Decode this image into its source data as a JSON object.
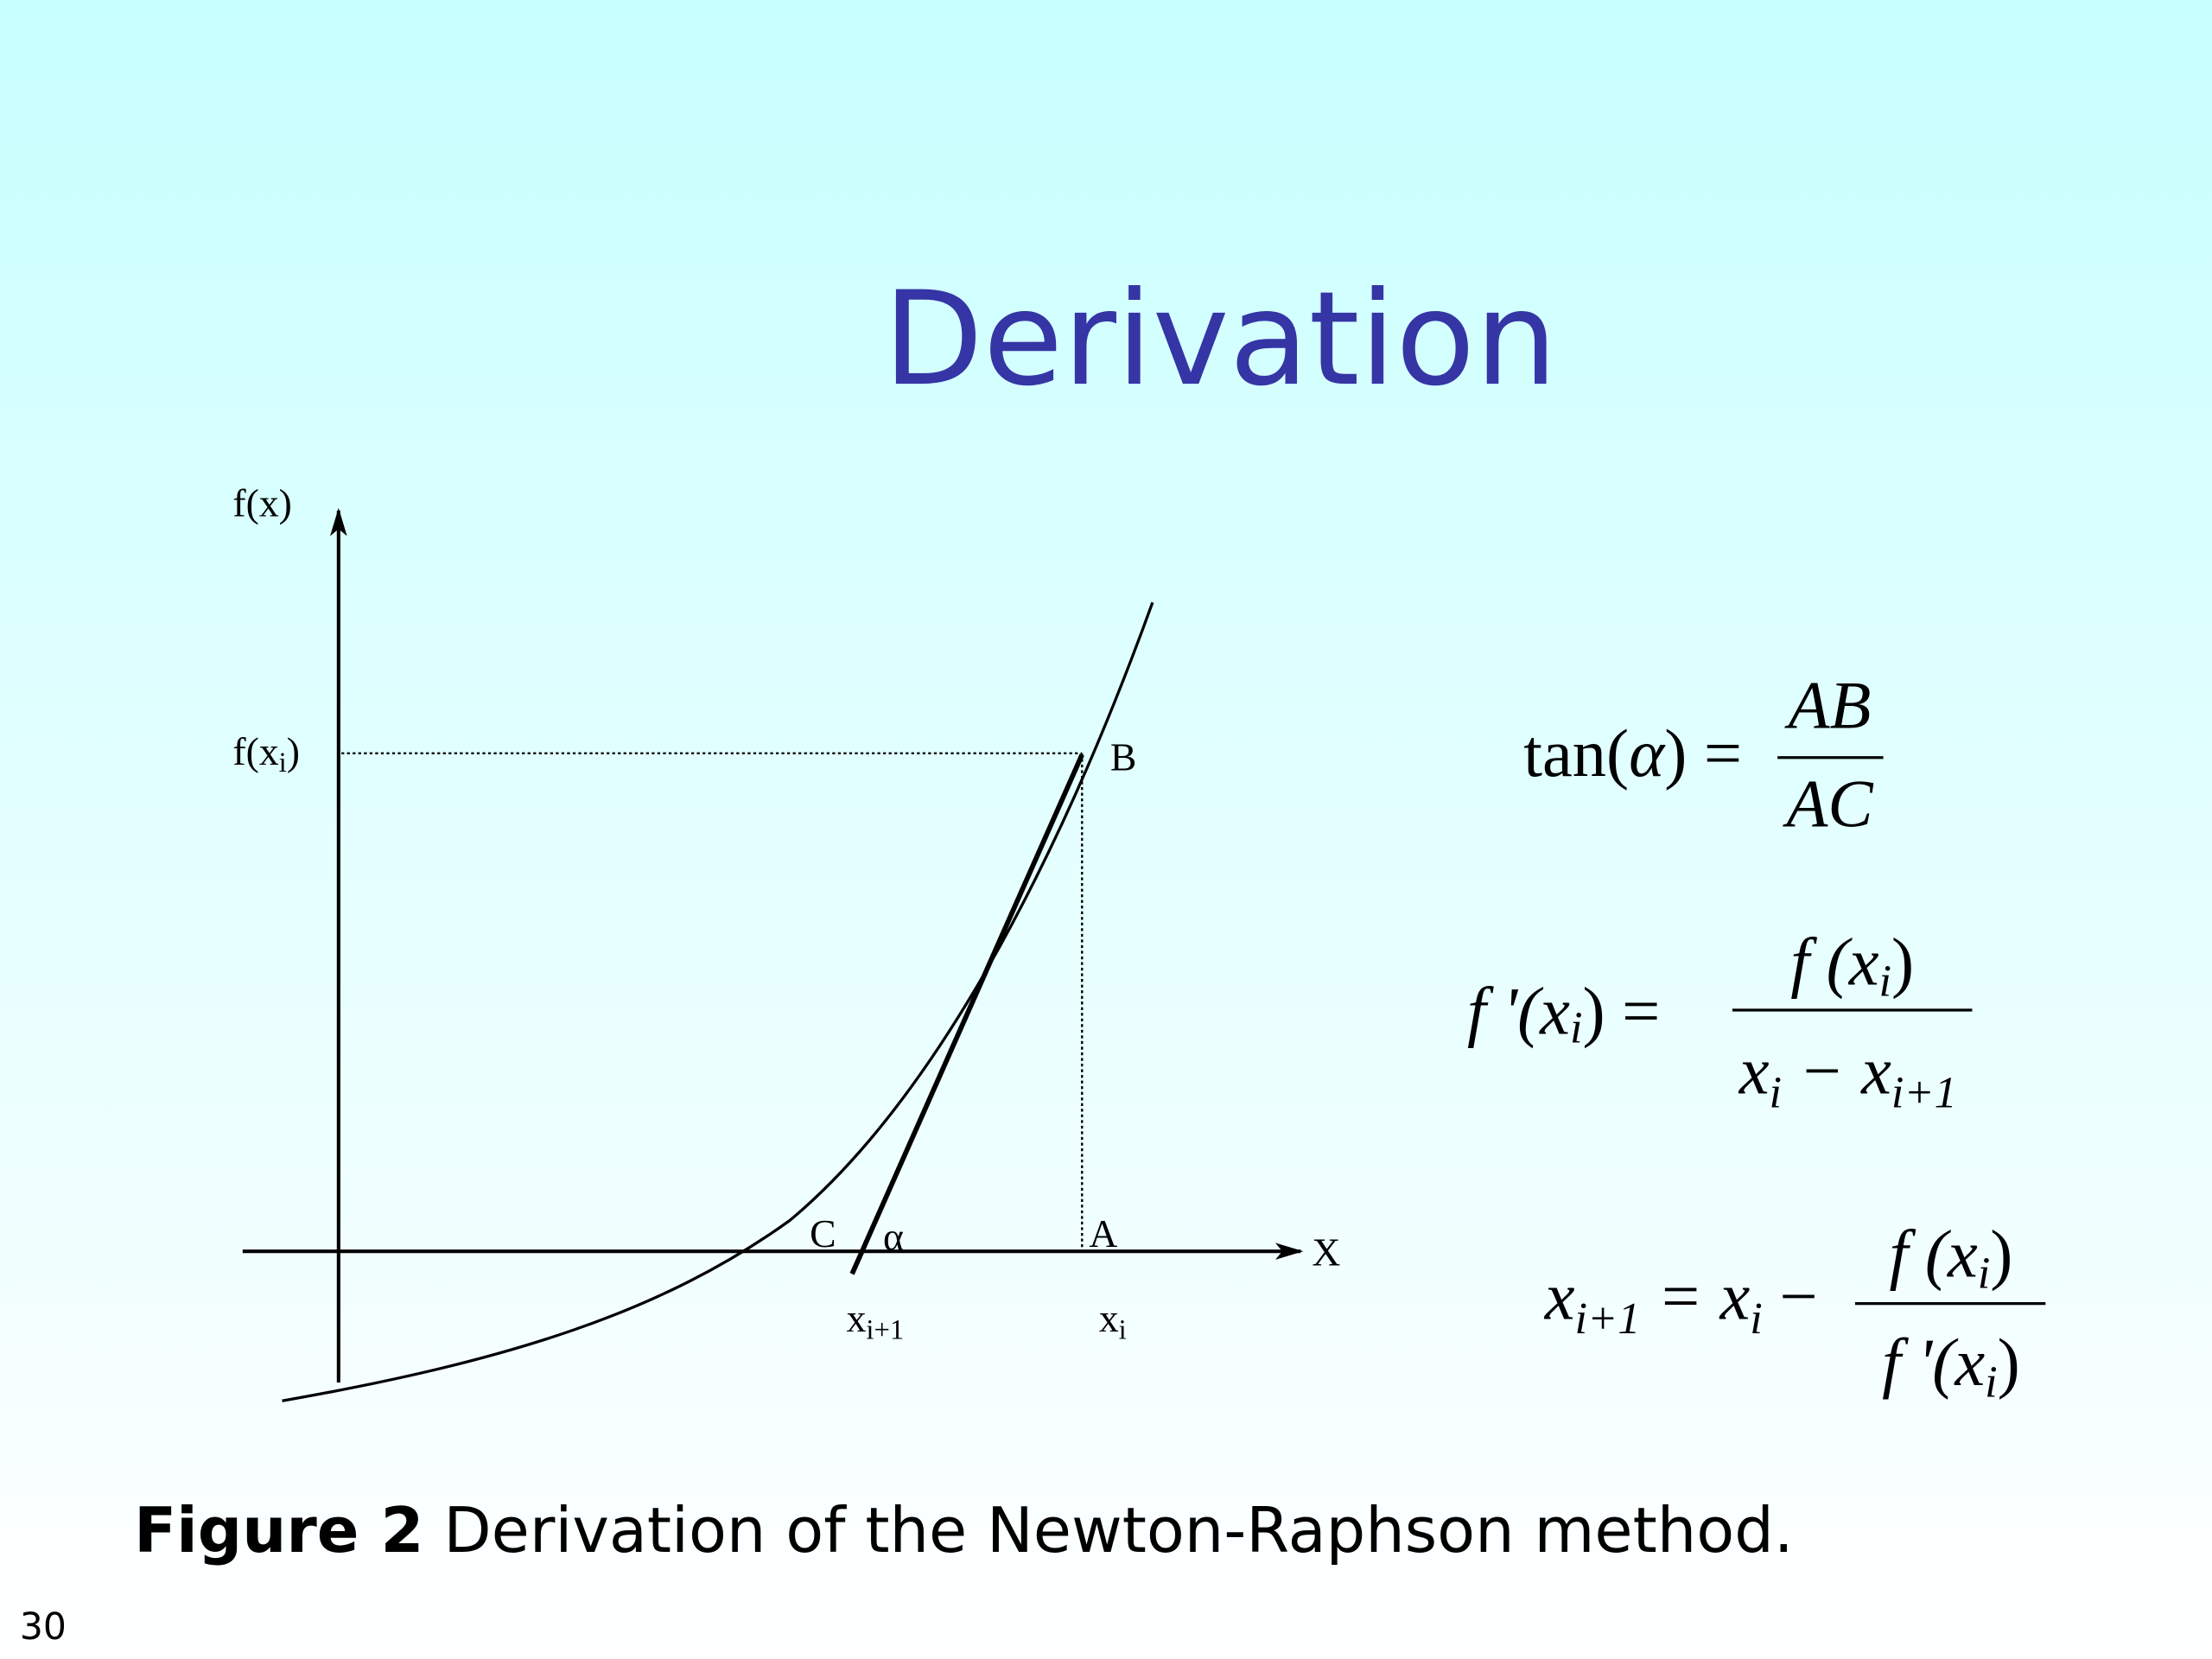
{
  "title": "Derivation",
  "diagram": {
    "y_axis": "f(x)",
    "x_axis": "X",
    "f_xi": [
      "f(x",
      "i",
      ")"
    ],
    "point_a": "A",
    "point_b": "B",
    "point_c": "C",
    "alpha": "α",
    "x_i1": [
      "x",
      "i+1"
    ],
    "x_i": [
      "x",
      "i"
    ]
  },
  "equations": [
    {
      "lhs": [
        "tan(",
        "α",
        ") ="
      ],
      "numerator": [
        "AB"
      ],
      "denominator": [
        "AC"
      ]
    },
    {
      "lhs": [
        "f '(x",
        "i",
        ") ="
      ],
      "numerator": [
        "f (x",
        "i",
        ")"
      ],
      "denominator": [
        "x",
        "i",
        " − x",
        "i+1"
      ]
    },
    {
      "lhs": [
        "x",
        "i+1",
        " = x",
        "i",
        " −"
      ],
      "numerator": [
        "f (x",
        "i",
        ")"
      ],
      "denominator": [
        "f '(x",
        "i",
        ")"
      ]
    }
  ],
  "caption": {
    "label": "Figure 2",
    "text": "Derivation of the Newton-Raphson method."
  },
  "page_number": "30"
}
